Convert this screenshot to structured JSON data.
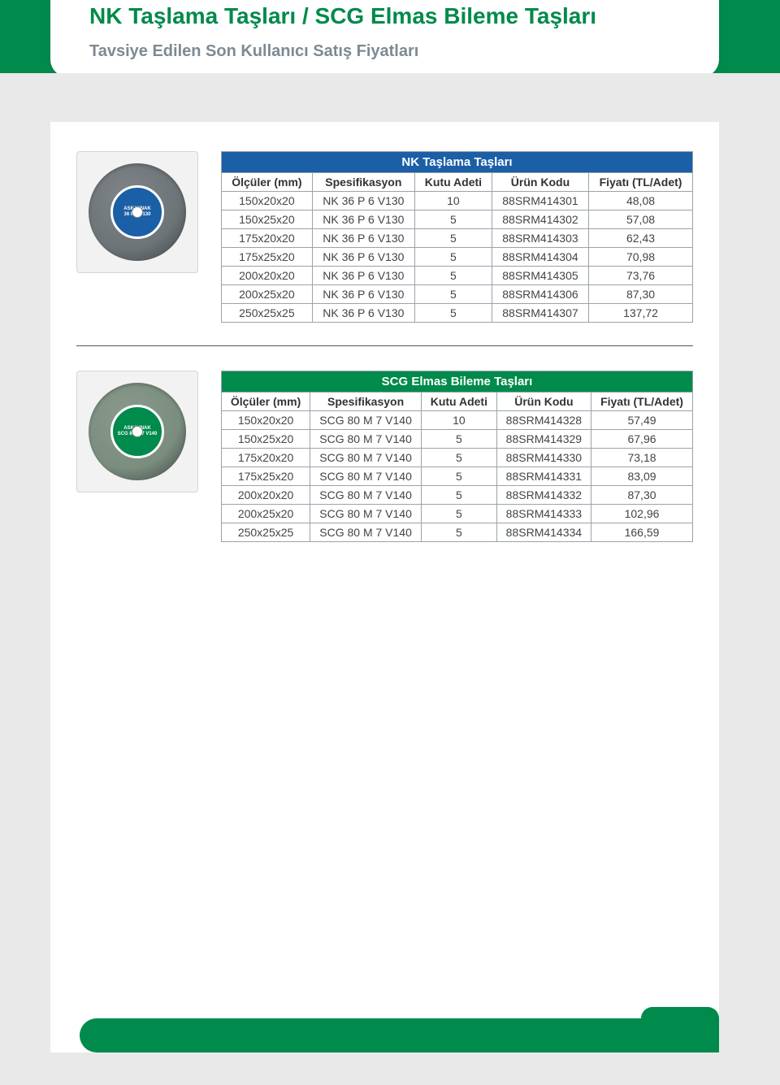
{
  "header": {
    "title": "NK Taşlama Taşları / SCG Elmas Bileme Taşları",
    "subtitle": "Tavsiye Edilen Son Kullanıcı Satış Fiyatları"
  },
  "colors": {
    "brand_green": "#008a4b",
    "table1_title_bg": "#1b5fa6",
    "table2_title_bg": "#008a4b",
    "border": "#9aa3ab",
    "page_bg": "#e9e9e9"
  },
  "images": {
    "disc1": {
      "body_color": "#6d7478",
      "label_bg": "#1b5fa6",
      "label_text": "ASKAYNAK\n36 P 6 V130"
    },
    "disc2": {
      "body_color": "#7a8d7e",
      "label_bg": "#008a4b",
      "label_text": "ASKAYNAK\nSCG 80 M 7 V140"
    }
  },
  "tables": {
    "columns": [
      "Ölçüler (mm)",
      "Spesifikasyon",
      "Kutu Adeti",
      "Ürün Kodu",
      "Fiyatı (TL/Adet)"
    ],
    "table1": {
      "title": "NK Taşlama Taşları",
      "rows": [
        [
          "150x20x20",
          "NK 36 P 6 V130",
          "10",
          "88SRM414301",
          "48,08"
        ],
        [
          "150x25x20",
          "NK 36 P 6 V130",
          "5",
          "88SRM414302",
          "57,08"
        ],
        [
          "175x20x20",
          "NK 36 P 6 V130",
          "5",
          "88SRM414303",
          "62,43"
        ],
        [
          "175x25x20",
          "NK 36 P 6 V130",
          "5",
          "88SRM414304",
          "70,98"
        ],
        [
          "200x20x20",
          "NK 36 P 6 V130",
          "5",
          "88SRM414305",
          "73,76"
        ],
        [
          "200x25x20",
          "NK 36 P 6 V130",
          "5",
          "88SRM414306",
          "87,30"
        ],
        [
          "250x25x25",
          "NK 36 P 6 V130",
          "5",
          "88SRM414307",
          "137,72"
        ]
      ]
    },
    "table2": {
      "title": "SCG Elmas Bileme Taşları",
      "rows": [
        [
          "150x20x20",
          "SCG 80 M 7 V140",
          "10",
          "88SRM414328",
          "57,49"
        ],
        [
          "150x25x20",
          "SCG 80 M 7 V140",
          "5",
          "88SRM414329",
          "67,96"
        ],
        [
          "175x20x20",
          "SCG 80 M 7 V140",
          "5",
          "88SRM414330",
          "73,18"
        ],
        [
          "175x25x20",
          "SCG 80 M 7 V140",
          "5",
          "88SRM414331",
          "83,09"
        ],
        [
          "200x20x20",
          "SCG 80 M 7 V140",
          "5",
          "88SRM414332",
          "87,30"
        ],
        [
          "200x25x20",
          "SCG 80 M 7 V140",
          "5",
          "88SRM414333",
          "102,96"
        ],
        [
          "250x25x25",
          "SCG 80 M 7 V140",
          "5",
          "88SRM414334",
          "166,59"
        ]
      ]
    }
  }
}
